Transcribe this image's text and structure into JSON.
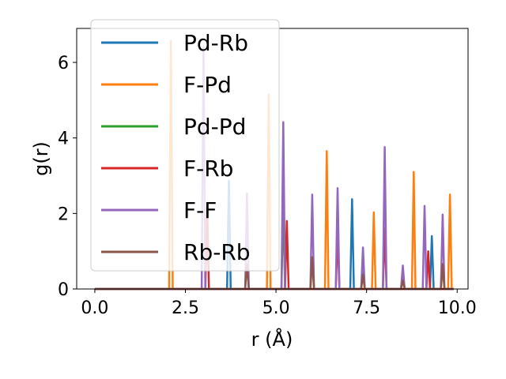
{
  "chart_data": {
    "type": "line",
    "xlabel": "r (Å)",
    "ylabel": "g(r)",
    "xlim": [
      -0.5,
      10.3
    ],
    "ylim": [
      0,
      6.9
    ],
    "xticks": [
      0.0,
      2.5,
      5.0,
      7.5,
      10.0
    ],
    "xtick_labels": [
      "0.0",
      "2.5",
      "5.0",
      "7.5",
      "10.0"
    ],
    "yticks": [
      0,
      2,
      4,
      6
    ],
    "ytick_labels": [
      "0",
      "2",
      "4",
      "6"
    ],
    "grid": false,
    "legend_placement": "top-left",
    "series": [
      {
        "name": "Pd-Rb",
        "color": "#1f77b4",
        "peaks": [
          [
            3.7,
            2.87
          ],
          [
            7.1,
            2.38
          ],
          [
            9.3,
            1.4
          ]
        ]
      },
      {
        "name": "F-Pd",
        "color": "#ff7f0e",
        "peaks": [
          [
            2.1,
            6.57
          ],
          [
            4.8,
            5.15
          ],
          [
            6.4,
            3.65
          ],
          [
            7.7,
            2.03
          ],
          [
            8.8,
            3.1
          ],
          [
            9.8,
            2.5
          ]
        ]
      },
      {
        "name": "Pd-Pd",
        "color": "#2ca02c",
        "peaks": [
          [
            5.2,
            2.3
          ],
          [
            6.0,
            0.8
          ],
          [
            7.4,
            0.5
          ],
          [
            8.5,
            0.4
          ],
          [
            9.6,
            0.6
          ]
        ]
      },
      {
        "name": "F-Rb",
        "color": "#d62728",
        "peaks": [
          [
            3.1,
            2.2
          ],
          [
            5.3,
            1.8
          ],
          [
            6.7,
            1.5
          ],
          [
            8.0,
            1.6
          ],
          [
            9.2,
            1.0
          ]
        ]
      },
      {
        "name": "F-F",
        "color": "#9467bd",
        "peaks": [
          [
            3.0,
            6.4
          ],
          [
            4.2,
            2.53
          ],
          [
            5.2,
            4.42
          ],
          [
            6.0,
            2.5
          ],
          [
            6.7,
            2.67
          ],
          [
            7.4,
            1.1
          ],
          [
            8.0,
            3.76
          ],
          [
            8.5,
            0.62
          ],
          [
            9.1,
            2.2
          ],
          [
            9.6,
            1.97
          ]
        ]
      },
      {
        "name": "Rb-Rb",
        "color": "#8c564b",
        "peaks": [
          [
            4.2,
            0.65
          ],
          [
            6.0,
            0.84
          ],
          [
            7.4,
            0.38
          ],
          [
            8.5,
            0.22
          ],
          [
            9.6,
            0.66
          ]
        ]
      }
    ]
  }
}
